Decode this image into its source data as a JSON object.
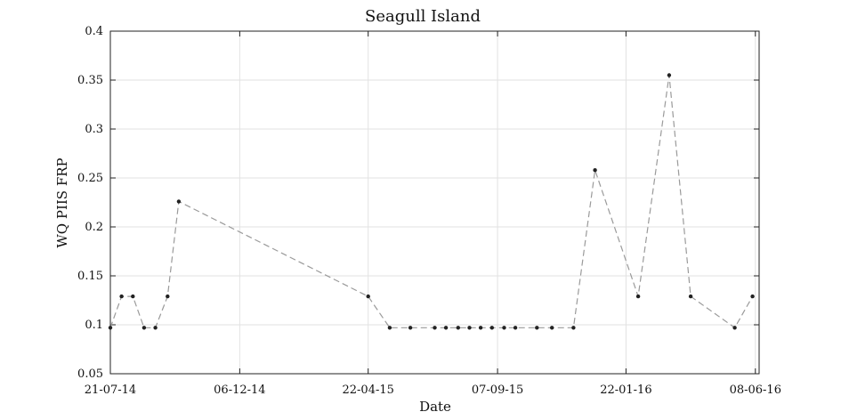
{
  "chart_data": {
    "type": "line",
    "title": "Seagull Island",
    "xlabel": "Date",
    "ylabel": "WQ PIIS FRP",
    "x_ticks": [
      "21-07-14",
      "06-12-14",
      "22-04-15",
      "07-09-15",
      "22-01-16",
      "08-06-16"
    ],
    "xlim": [
      "2014-07-21",
      "2016-06-12"
    ],
    "ylim": [
      0.05,
      0.4
    ],
    "y_ticks": [
      0.05,
      0.1,
      0.15,
      0.2,
      0.25,
      0.3,
      0.35,
      0.4
    ],
    "grid": true,
    "series": [
      {
        "color": "#9a9a9a",
        "marker_color": "#222222",
        "line_style": "dashed",
        "points": [
          {
            "x": "2014-07-21",
            "y": 0.097
          },
          {
            "x": "2014-08-02",
            "y": 0.129
          },
          {
            "x": "2014-08-14",
            "y": 0.129
          },
          {
            "x": "2014-08-26",
            "y": 0.097
          },
          {
            "x": "2014-09-07",
            "y": 0.097
          },
          {
            "x": "2014-09-20",
            "y": 0.129
          },
          {
            "x": "2014-10-02",
            "y": 0.226
          },
          {
            "x": "2015-04-22",
            "y": 0.129
          },
          {
            "x": "2015-05-15",
            "y": 0.097
          },
          {
            "x": "2015-06-06",
            "y": 0.097
          },
          {
            "x": "2015-07-02",
            "y": 0.097
          },
          {
            "x": "2015-07-14",
            "y": 0.097
          },
          {
            "x": "2015-07-27",
            "y": 0.097
          },
          {
            "x": "2015-08-08",
            "y": 0.097
          },
          {
            "x": "2015-08-20",
            "y": 0.097
          },
          {
            "x": "2015-09-01",
            "y": 0.097
          },
          {
            "x": "2015-09-14",
            "y": 0.097
          },
          {
            "x": "2015-09-26",
            "y": 0.097
          },
          {
            "x": "2015-10-19",
            "y": 0.097
          },
          {
            "x": "2015-11-04",
            "y": 0.097
          },
          {
            "x": "2015-11-27",
            "y": 0.097
          },
          {
            "x": "2015-12-20",
            "y": 0.258
          },
          {
            "x": "2016-02-04",
            "y": 0.129
          },
          {
            "x": "2016-03-08",
            "y": 0.355
          },
          {
            "x": "2016-03-31",
            "y": 0.129
          },
          {
            "x": "2016-05-17",
            "y": 0.097
          },
          {
            "x": "2016-06-05",
            "y": 0.129
          }
        ]
      }
    ]
  }
}
